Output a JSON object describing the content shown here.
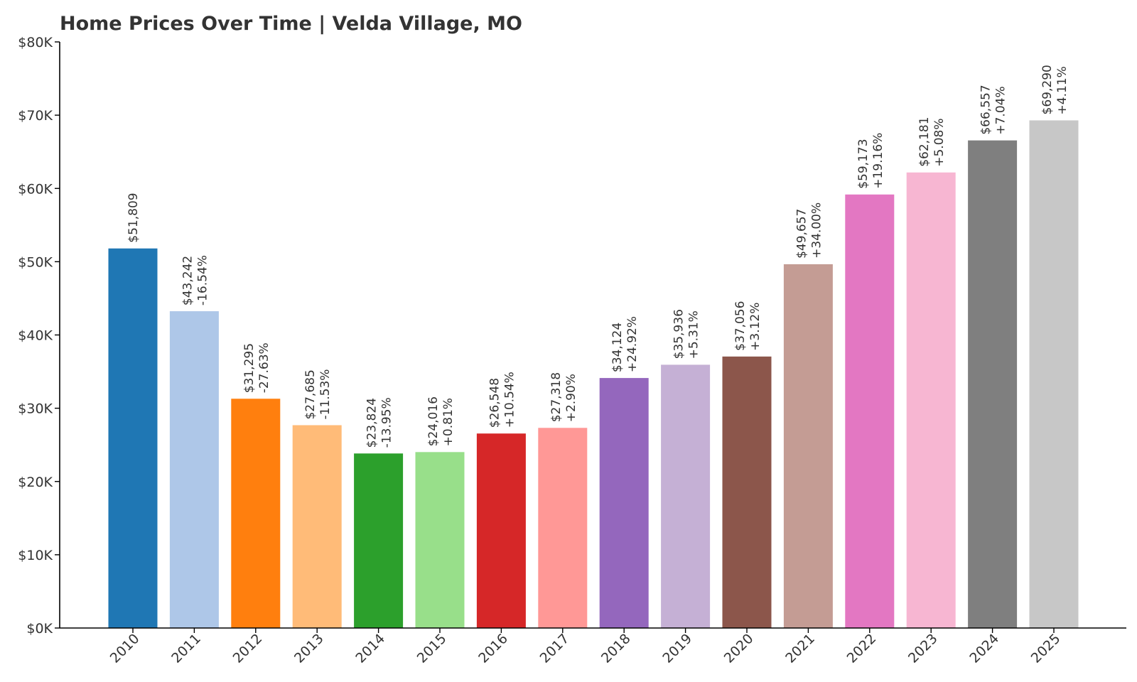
{
  "chart_data": {
    "type": "bar",
    "title": "Home Prices Over Time | Velda Village, MO",
    "xlabel": "",
    "ylabel": "",
    "categories": [
      "2010",
      "2011",
      "2012",
      "2013",
      "2014",
      "2015",
      "2016",
      "2017",
      "2018",
      "2019",
      "2020",
      "2021",
      "2022",
      "2023",
      "2024",
      "2025"
    ],
    "values": [
      51809,
      43242,
      31295,
      27685,
      23824,
      24016,
      26548,
      27318,
      34124,
      35936,
      37056,
      49657,
      59173,
      62181,
      66557,
      69290
    ],
    "value_labels": [
      "$51,809",
      "$43,242",
      "$31,295",
      "$27,685",
      "$23,824",
      "$24,016",
      "$26,548",
      "$27,318",
      "$34,124",
      "$35,936",
      "$37,056",
      "$49,657",
      "$59,173",
      "$62,181",
      "$66,557",
      "$69,290"
    ],
    "change_labels": [
      "",
      "-16.54%",
      "-27.63%",
      "-11.53%",
      "-13.95%",
      "+0.81%",
      "+10.54%",
      "+2.90%",
      "+24.92%",
      "+5.31%",
      "+3.12%",
      "+34.00%",
      "+19.16%",
      "+5.08%",
      "+7.04%",
      "+4.11%"
    ],
    "colors": [
      "#1f77b4",
      "#aec7e8",
      "#ff7f0e",
      "#ffbb78",
      "#2ca02c",
      "#98df8a",
      "#d62728",
      "#ff9896",
      "#9467bd",
      "#c5b0d5",
      "#8c564b",
      "#c49c94",
      "#e377c2",
      "#f7b6d2",
      "#7f7f7f",
      "#c7c7c7"
    ],
    "ylim": [
      0,
      80000
    ],
    "yticks": [
      0,
      10000,
      20000,
      30000,
      40000,
      50000,
      60000,
      70000,
      80000
    ],
    "ytick_labels": [
      "$0K",
      "$10K",
      "$20K",
      "$30K",
      "$40K",
      "$50K",
      "$60K",
      "$70K",
      "$80K"
    ],
    "grid": false,
    "legend": "none"
  }
}
